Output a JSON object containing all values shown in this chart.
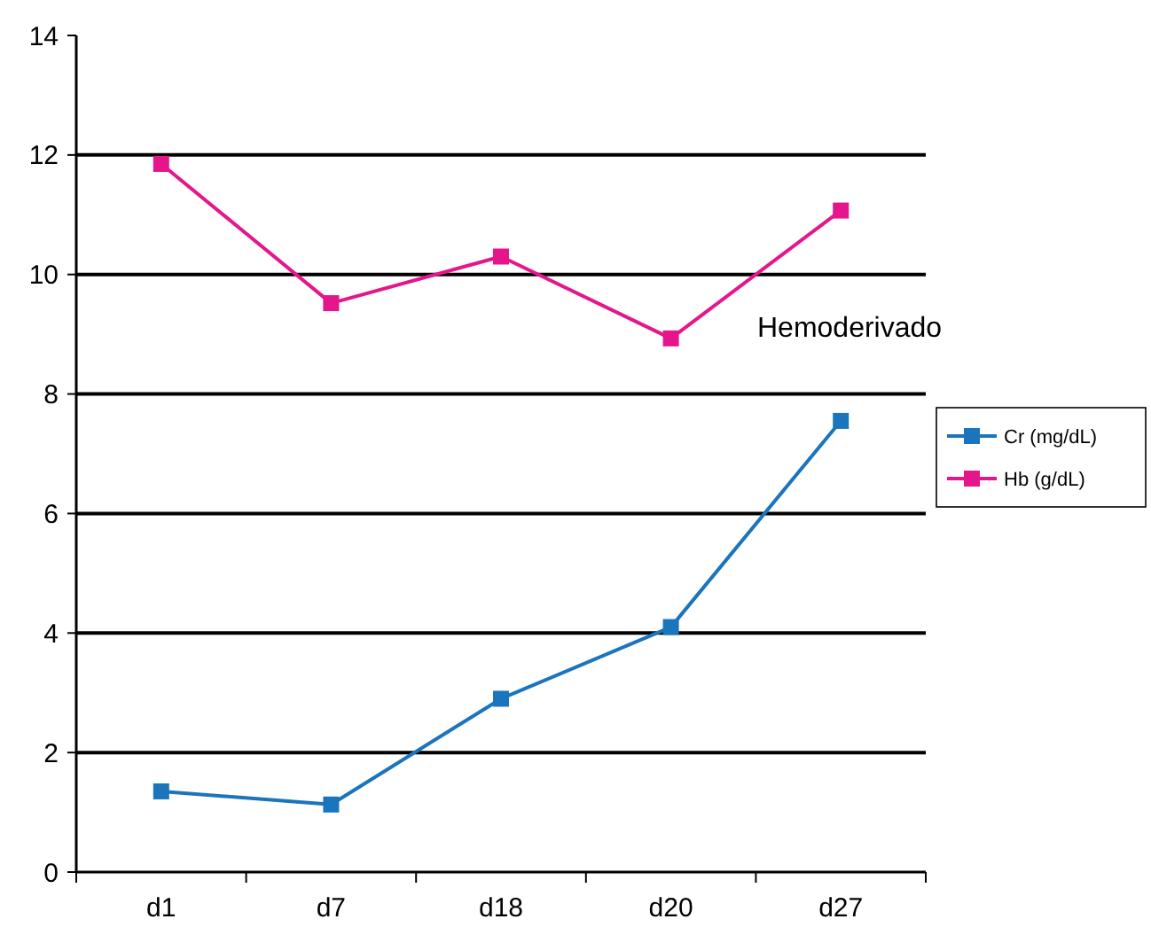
{
  "chart_data": {
    "type": "line",
    "categories": [
      "d1",
      "d7",
      "d18",
      "d20",
      "d27"
    ],
    "series": [
      {
        "name": "Cr (mg/dL)",
        "color": "#1b75bc",
        "values": [
          1.35,
          1.13,
          2.9,
          4.1,
          7.55
        ]
      },
      {
        "name": "Hb (g/dL)",
        "color": "#e5168c",
        "values": [
          11.85,
          9.52,
          10.3,
          8.93,
          11.07
        ]
      }
    ],
    "ylim": [
      0,
      14
    ],
    "yticks": [
      0,
      2,
      4,
      6,
      8,
      10,
      12,
      14
    ],
    "grid": "y",
    "legend": "right",
    "marker": "square",
    "line_style": "solid",
    "annotations": [
      "Hemoderivado"
    ]
  }
}
